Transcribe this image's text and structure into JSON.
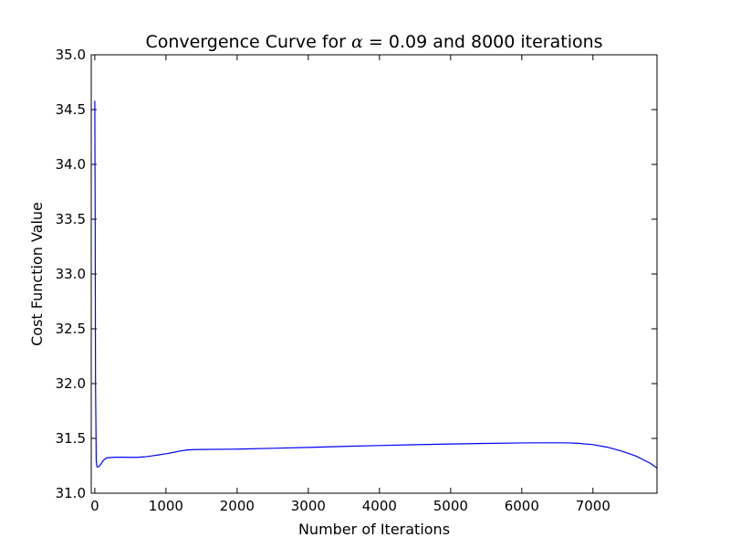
{
  "chart_data": {
    "type": "line",
    "title_prefix": "Convergence Curve for ",
    "title_symbol": "α",
    "title_equals": " = ",
    "title_suffix": "0.09 and 8000 iterations",
    "xlabel": "Number of Iterations",
    "ylabel": "Cost Function Value",
    "xlim": [
      -50,
      7900
    ],
    "ylim": [
      31.0,
      35.0
    ],
    "xticks": [
      0,
      1000,
      2000,
      3000,
      4000,
      5000,
      6000,
      7000
    ],
    "xtick_labels": [
      "0",
      "1000",
      "2000",
      "3000",
      "4000",
      "5000",
      "6000",
      "7000"
    ],
    "yticks": [
      31.0,
      31.5,
      32.0,
      32.5,
      33.0,
      33.5,
      34.0,
      34.5,
      35.0
    ],
    "ytick_labels": [
      "31.0",
      "31.5",
      "32.0",
      "32.5",
      "33.0",
      "33.5",
      "34.0",
      "34.5",
      "35.0"
    ],
    "grid": false,
    "line_color": "#0000ff",
    "series": [
      {
        "x": [
          0,
          5,
          10,
          20,
          30,
          50,
          80,
          120,
          160,
          200,
          300,
          400,
          500,
          600,
          700,
          800,
          900,
          1000,
          1100,
          1200,
          1300,
          1400,
          1500,
          2000,
          2500,
          3000,
          3500,
          4000,
          4500,
          5000,
          5500,
          6000,
          6300,
          6600,
          6800,
          7000,
          7200,
          7400,
          7600,
          7800,
          7900
        ],
        "y": [
          34.58,
          33.5,
          32.0,
          31.3,
          31.24,
          31.24,
          31.26,
          31.3,
          31.32,
          31.325,
          31.328,
          31.328,
          31.327,
          31.327,
          31.332,
          31.34,
          31.35,
          31.36,
          31.372,
          31.385,
          31.395,
          31.398,
          31.399,
          31.402,
          31.41,
          31.418,
          31.427,
          31.435,
          31.443,
          31.449,
          31.454,
          31.459,
          31.46,
          31.46,
          31.455,
          31.443,
          31.42,
          31.385,
          31.34,
          31.275,
          31.23
        ]
      }
    ]
  }
}
